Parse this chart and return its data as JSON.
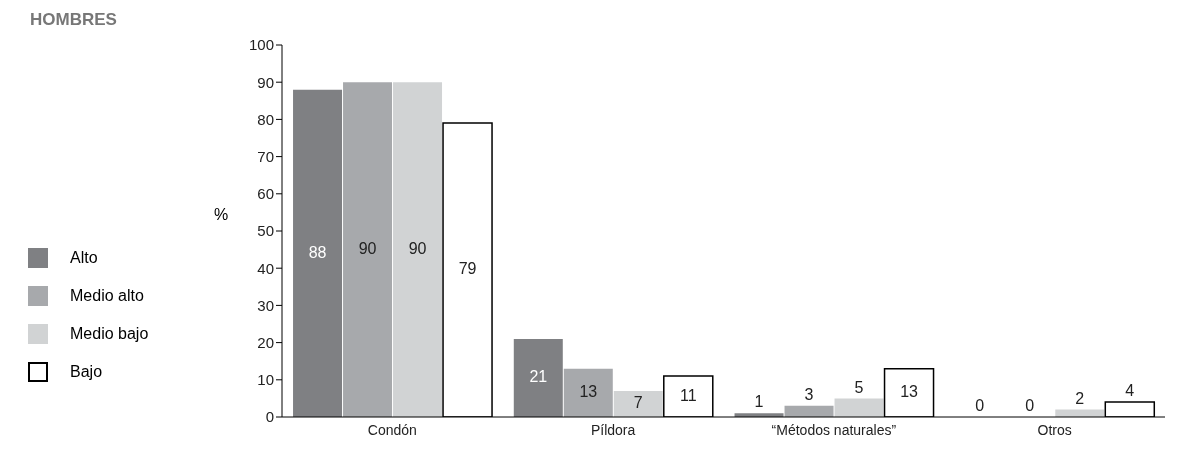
{
  "chart_data": {
    "type": "bar",
    "title": "HOMBRES",
    "ylabel": "%",
    "categories": [
      "Condón",
      "Píldora",
      "“Métodos naturales”",
      "Otros"
    ],
    "series": [
      {
        "name": "Alto",
        "color": "#7f8083",
        "values": [
          88,
          21,
          1,
          0
        ]
      },
      {
        "name": "Medio alto",
        "color": "#a7a9ac",
        "values": [
          90,
          13,
          3,
          0
        ]
      },
      {
        "name": "Medio bajo",
        "color": "#d1d3d4",
        "values": [
          90,
          7,
          5,
          2
        ]
      },
      {
        "name": "Bajo",
        "color": "#ffffff",
        "values": [
          79,
          11,
          13,
          4
        ]
      }
    ],
    "ylim": [
      0,
      100
    ],
    "yticks": [
      0,
      10,
      20,
      30,
      40,
      50,
      60,
      70,
      80,
      90,
      100
    ],
    "grid": false,
    "legend": "left",
    "data_labels": true
  }
}
